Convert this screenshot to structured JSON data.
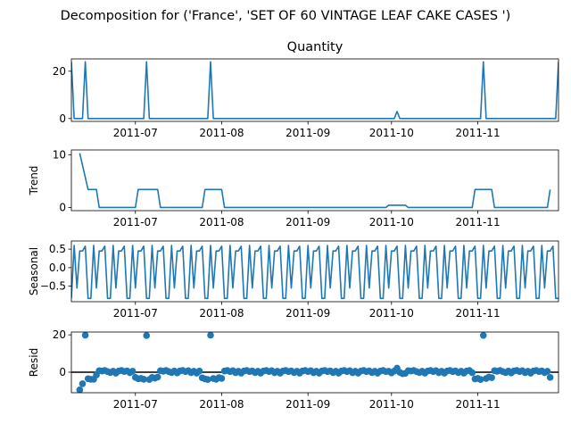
{
  "figure": {
    "suptitle": "Decomposition for ('France', 'SET OF 60 VINTAGE LEAF CAKE CASES ')"
  },
  "chart_data": [
    {
      "type": "line",
      "title": "Quantity",
      "ylabel": "",
      "x_ticks": [
        "2011-07",
        "2011-08",
        "2011-09",
        "2011-10",
        "2011-11"
      ],
      "y_ticks": [
        "0",
        "20"
      ],
      "x_range": [
        "2011-06-08",
        "2011-11-30"
      ],
      "ylim": [
        -1.2,
        25.2
      ],
      "series": [
        {
          "color": "#1f77b4",
          "points": [
            [
              "2011-06-08",
              24
            ],
            [
              "2011-06-09",
              0
            ],
            [
              "2011-06-12",
              0
            ],
            [
              "2011-06-13",
              24
            ],
            [
              "2011-06-14",
              0
            ],
            [
              "2011-07-04",
              0
            ],
            [
              "2011-07-05",
              24
            ],
            [
              "2011-07-06",
              0
            ],
            [
              "2011-07-27",
              0
            ],
            [
              "2011-07-28",
              24
            ],
            [
              "2011-07-29",
              0
            ],
            [
              "2011-10-02",
              0
            ],
            [
              "2011-10-03",
              3
            ],
            [
              "2011-10-04",
              0
            ],
            [
              "2011-11-02",
              0
            ],
            [
              "2011-11-03",
              24
            ],
            [
              "2011-11-04",
              0
            ],
            [
              "2011-11-29",
              0
            ],
            [
              "2011-11-30",
              24
            ]
          ]
        }
      ]
    },
    {
      "type": "line",
      "title": "",
      "ylabel": "Trend",
      "x_ticks": [
        "2011-07",
        "2011-08",
        "2011-09",
        "2011-10",
        "2011-11"
      ],
      "y_ticks": [
        "0",
        "10"
      ],
      "x_range": [
        "2011-06-08",
        "2011-11-30"
      ],
      "ylim": [
        -0.6,
        10.9
      ],
      "series": [
        {
          "color": "#1f77b4",
          "points": [
            [
              "2011-06-11",
              10.3
            ],
            [
              "2011-06-14",
              3.4
            ],
            [
              "2011-06-17",
              3.4
            ],
            [
              "2011-06-18",
              0
            ],
            [
              "2011-07-01",
              0
            ],
            [
              "2011-07-02",
              3.4
            ],
            [
              "2011-07-09",
              3.4
            ],
            [
              "2011-07-10",
              0
            ],
            [
              "2011-07-25",
              0
            ],
            [
              "2011-07-26",
              3.4
            ],
            [
              "2011-08-01",
              3.4
            ],
            [
              "2011-08-02",
              0
            ],
            [
              "2011-09-29",
              0
            ],
            [
              "2011-09-30",
              0.43
            ],
            [
              "2011-10-06",
              0.43
            ],
            [
              "2011-10-07",
              0
            ],
            [
              "2011-10-30",
              0
            ],
            [
              "2011-10-31",
              3.4
            ],
            [
              "2011-11-06",
              3.4
            ],
            [
              "2011-11-07",
              0
            ],
            [
              "2011-11-26",
              0
            ],
            [
              "2011-11-27",
              3.4
            ]
          ]
        }
      ]
    },
    {
      "type": "line",
      "title": "",
      "ylabel": "Seasonal",
      "x_ticks": [
        "2011-07",
        "2011-08",
        "2011-09",
        "2011-10",
        "2011-11"
      ],
      "y_ticks": [
        "0.5",
        "0.0",
        "−0.5"
      ],
      "x_range": [
        "2011-06-08",
        "2011-11-30"
      ],
      "ylim": [
        -0.92,
        0.72
      ],
      "series": [
        {
          "color": "#1f77b4",
          "period": 7,
          "pattern": [
            -0.83,
            0.6,
            -0.55,
            0.45,
            0.45,
            0.58,
            -0.83
          ]
        }
      ]
    },
    {
      "type": "scatter",
      "title": "",
      "ylabel": "Resid",
      "x_ticks": [
        "2011-07",
        "2011-08",
        "2011-09",
        "2011-10",
        "2011-11"
      ],
      "y_ticks": [
        "0",
        "20"
      ],
      "x_range": [
        "2011-06-08",
        "2011-11-30"
      ],
      "ylim": [
        -11,
        21.5
      ],
      "zero_line": 0,
      "series": [
        {
          "color": "#1f77b4",
          "points": [
            [
              "2011-06-11",
              -9.5
            ],
            [
              "2011-06-12",
              -6.2
            ],
            [
              "2011-06-13",
              19.8
            ],
            [
              "2011-06-14",
              -3.5
            ],
            [
              "2011-06-15",
              -3.8
            ],
            [
              "2011-06-16",
              -3.8
            ],
            [
              "2011-06-17",
              -1.5
            ],
            [
              "2011-06-18",
              0.8
            ],
            [
              "2011-06-19",
              0.6
            ],
            [
              "2011-06-20",
              0.9
            ],
            [
              "2011-06-21",
              0.3
            ],
            [
              "2011-06-22",
              -0.2
            ],
            [
              "2011-06-23",
              0.5
            ],
            [
              "2011-06-24",
              -0.5
            ],
            [
              "2011-06-25",
              0.6
            ],
            [
              "2011-06-26",
              0.9
            ],
            [
              "2011-06-27",
              0.4
            ],
            [
              "2011-06-28",
              0.7
            ],
            [
              "2011-06-29",
              -0.3
            ],
            [
              "2011-06-30",
              0.5
            ],
            [
              "2011-07-01",
              -2.8
            ],
            [
              "2011-07-02",
              -3.5
            ],
            [
              "2011-07-03",
              -3.3
            ],
            [
              "2011-07-04",
              -3.8
            ],
            [
              "2011-07-05",
              19.6
            ],
            [
              "2011-07-06",
              -3.9
            ],
            [
              "2011-07-07",
              -2.8
            ],
            [
              "2011-07-08",
              -3.2
            ],
            [
              "2011-07-09",
              -2.6
            ],
            [
              "2011-07-10",
              0.8
            ],
            [
              "2011-07-11",
              0.5
            ],
            [
              "2011-07-12",
              0.9
            ],
            [
              "2011-07-13",
              0.3
            ],
            [
              "2011-07-14",
              -0.2
            ],
            [
              "2011-07-15",
              0.6
            ],
            [
              "2011-07-16",
              -0.4
            ],
            [
              "2011-07-17",
              0.7
            ],
            [
              "2011-07-18",
              0.9
            ],
            [
              "2011-07-19",
              0.3
            ],
            [
              "2011-07-20",
              0.8
            ],
            [
              "2011-07-21",
              -0.3
            ],
            [
              "2011-07-22",
              0.5
            ],
            [
              "2011-07-23",
              -0.5
            ],
            [
              "2011-07-24",
              0.6
            ],
            [
              "2011-07-25",
              -3.0
            ],
            [
              "2011-07-26",
              -3.6
            ],
            [
              "2011-07-27",
              -3.9
            ],
            [
              "2011-07-28",
              19.8
            ],
            [
              "2011-07-29",
              -3.4
            ],
            [
              "2011-07-30",
              -3.8
            ],
            [
              "2011-07-31",
              -2.9
            ],
            [
              "2011-08-01",
              -3.3
            ],
            [
              "2011-08-02",
              0.6
            ],
            [
              "2011-08-03",
              0.9
            ],
            [
              "2011-08-04",
              0.3
            ],
            [
              "2011-08-05",
              0.8
            ],
            [
              "2011-08-06",
              -0.3
            ],
            [
              "2011-08-07",
              0.5
            ],
            [
              "2011-08-08",
              -0.5
            ],
            [
              "2011-08-09",
              0.6
            ],
            [
              "2011-08-10",
              0.9
            ],
            [
              "2011-08-11",
              0.3
            ],
            [
              "2011-08-12",
              0.7
            ],
            [
              "2011-08-13",
              -0.2
            ],
            [
              "2011-08-14",
              0.5
            ],
            [
              "2011-08-15",
              -0.5
            ],
            [
              "2011-08-16",
              0.6
            ],
            [
              "2011-08-17",
              0.9
            ],
            [
              "2011-08-18",
              0.3
            ],
            [
              "2011-08-19",
              0.8
            ],
            [
              "2011-08-20",
              -0.3
            ],
            [
              "2011-08-21",
              0.5
            ],
            [
              "2011-08-22",
              -0.5
            ],
            [
              "2011-08-23",
              0.6
            ],
            [
              "2011-08-24",
              0.9
            ],
            [
              "2011-08-25",
              0.3
            ],
            [
              "2011-08-26",
              0.7
            ],
            [
              "2011-08-27",
              -0.2
            ],
            [
              "2011-08-28",
              0.5
            ],
            [
              "2011-08-29",
              -0.5
            ],
            [
              "2011-08-30",
              0.6
            ],
            [
              "2011-08-31",
              0.9
            ],
            [
              "2011-09-01",
              0.3
            ],
            [
              "2011-09-02",
              0.8
            ],
            [
              "2011-09-03",
              -0.3
            ],
            [
              "2011-09-04",
              0.5
            ],
            [
              "2011-09-05",
              -0.5
            ],
            [
              "2011-09-06",
              0.6
            ],
            [
              "2011-09-07",
              0.9
            ],
            [
              "2011-09-08",
              0.3
            ],
            [
              "2011-09-09",
              0.7
            ],
            [
              "2011-09-10",
              -0.2
            ],
            [
              "2011-09-11",
              0.5
            ],
            [
              "2011-09-12",
              -0.5
            ],
            [
              "2011-09-13",
              0.6
            ],
            [
              "2011-09-14",
              0.9
            ],
            [
              "2011-09-15",
              0.3
            ],
            [
              "2011-09-16",
              0.8
            ],
            [
              "2011-09-17",
              -0.3
            ],
            [
              "2011-09-18",
              0.5
            ],
            [
              "2011-09-19",
              -0.5
            ],
            [
              "2011-09-20",
              0.6
            ],
            [
              "2011-09-21",
              0.9
            ],
            [
              "2011-09-22",
              0.3
            ],
            [
              "2011-09-23",
              0.7
            ],
            [
              "2011-09-24",
              -0.2
            ],
            [
              "2011-09-25",
              0.5
            ],
            [
              "2011-09-26",
              -0.5
            ],
            [
              "2011-09-27",
              0.6
            ],
            [
              "2011-09-28",
              0.9
            ],
            [
              "2011-09-29",
              0.3
            ],
            [
              "2011-09-30",
              0.5
            ],
            [
              "2011-10-01",
              -0.4
            ],
            [
              "2011-10-02",
              0.6
            ],
            [
              "2011-10-03",
              2.2
            ],
            [
              "2011-10-04",
              -0.1
            ],
            [
              "2011-10-05",
              -0.8
            ],
            [
              "2011-10-06",
              -0.6
            ],
            [
              "2011-10-07",
              0.8
            ],
            [
              "2011-10-08",
              0.6
            ],
            [
              "2011-10-09",
              0.9
            ],
            [
              "2011-10-10",
              0.3
            ],
            [
              "2011-10-11",
              -0.2
            ],
            [
              "2011-10-12",
              0.5
            ],
            [
              "2011-10-13",
              -0.5
            ],
            [
              "2011-10-14",
              0.6
            ],
            [
              "2011-10-15",
              0.9
            ],
            [
              "2011-10-16",
              0.3
            ],
            [
              "2011-10-17",
              0.8
            ],
            [
              "2011-10-18",
              -0.3
            ],
            [
              "2011-10-19",
              0.5
            ],
            [
              "2011-10-20",
              -0.5
            ],
            [
              "2011-10-21",
              0.6
            ],
            [
              "2011-10-22",
              0.9
            ],
            [
              "2011-10-23",
              0.3
            ],
            [
              "2011-10-24",
              0.7
            ],
            [
              "2011-10-25",
              -0.2
            ],
            [
              "2011-10-26",
              0.5
            ],
            [
              "2011-10-27",
              -0.5
            ],
            [
              "2011-10-28",
              0.6
            ],
            [
              "2011-10-29",
              0.9
            ],
            [
              "2011-10-30",
              -0.3
            ],
            [
              "2011-10-31",
              -3.6
            ],
            [
              "2011-11-01",
              -3.3
            ],
            [
              "2011-11-02",
              -3.9
            ],
            [
              "2011-11-03",
              19.7
            ],
            [
              "2011-11-04",
              -3.4
            ],
            [
              "2011-11-05",
              -2.6
            ],
            [
              "2011-11-06",
              -2.9
            ],
            [
              "2011-11-07",
              0.8
            ],
            [
              "2011-11-08",
              0.5
            ],
            [
              "2011-11-09",
              0.9
            ],
            [
              "2011-11-10",
              0.3
            ],
            [
              "2011-11-11",
              -0.2
            ],
            [
              "2011-11-12",
              0.6
            ],
            [
              "2011-11-13",
              -0.4
            ],
            [
              "2011-11-14",
              0.7
            ],
            [
              "2011-11-15",
              0.9
            ],
            [
              "2011-11-16",
              0.3
            ],
            [
              "2011-11-17",
              0.8
            ],
            [
              "2011-11-18",
              -0.3
            ],
            [
              "2011-11-19",
              0.5
            ],
            [
              "2011-11-20",
              -0.5
            ],
            [
              "2011-11-21",
              0.6
            ],
            [
              "2011-11-22",
              0.9
            ],
            [
              "2011-11-23",
              0.3
            ],
            [
              "2011-11-24",
              0.7
            ],
            [
              "2011-11-25",
              -0.2
            ],
            [
              "2011-11-26",
              0.5
            ],
            [
              "2011-11-27",
              -2.8
            ]
          ]
        }
      ]
    }
  ]
}
